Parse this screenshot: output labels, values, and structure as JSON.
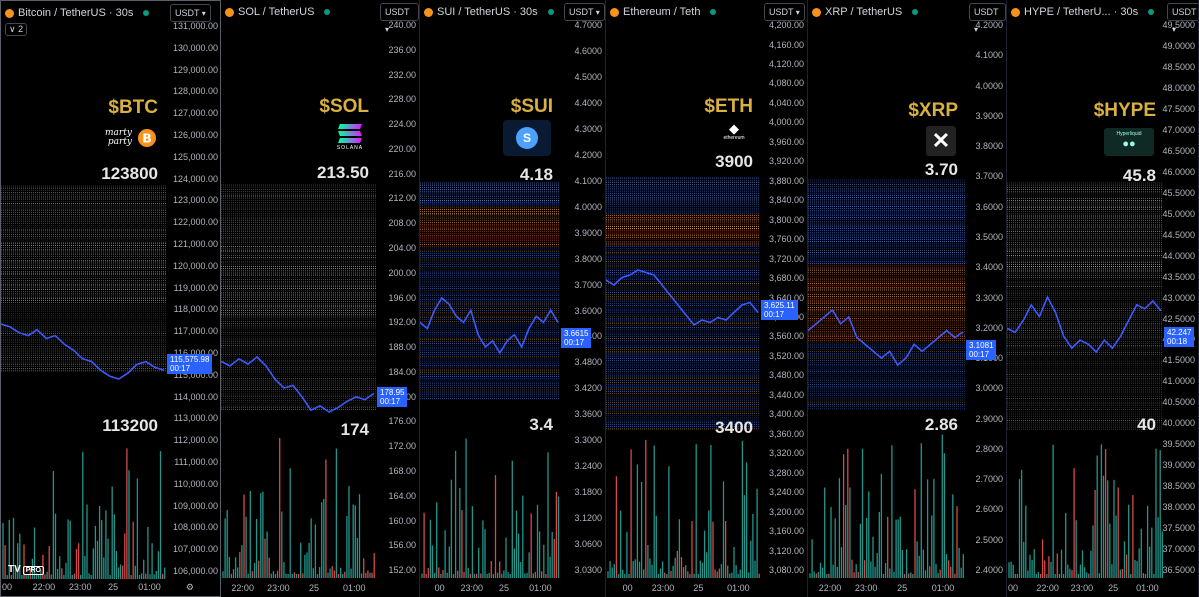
{
  "panels": [
    {
      "id": "btc",
      "title": "Bitcoin / TetherUS · 30s",
      "quote": "USDT",
      "collapse_label": "2",
      "symbol": "$BTC",
      "logo_text": "marty / party",
      "level_high": "123800",
      "level_low": "113200",
      "last_price": "115,575.98",
      "countdown": "00:17",
      "ticks": [
        "131,000.00",
        "130,000.00",
        "129,000.00",
        "128,000.00",
        "127,000.00",
        "126,000.00",
        "125,000.00",
        "124,000.00",
        "123,000.00",
        "122,000.00",
        "121,000.00",
        "120,000.00",
        "119,000.00",
        "118,000.00",
        "117,000.00",
        "116,000.00",
        "115,000.00",
        "114,000.00",
        "113,000.00",
        "112,000.00",
        "111,000.00",
        "110,000.00",
        "109,000.00",
        "108,000.00",
        "107,000.00",
        "106,000.00"
      ],
      "time_labels": [
        "00",
        "22:00",
        "23:00",
        "25",
        "01:00"
      ],
      "price_series": [
        117300,
        117200,
        117000,
        116900,
        117100,
        116800,
        116900,
        116600,
        116400,
        116100,
        116000,
        115700,
        115500,
        115400,
        115600,
        115900,
        116000,
        115800,
        115700
      ]
    },
    {
      "id": "sol",
      "title": "SOL / TetherUS",
      "quote": "USDT",
      "symbol": "$SOL",
      "logo_text": "SOLANA",
      "level_high": "213.50",
      "level_low": "174",
      "last_price": "178.95",
      "countdown": "00:17",
      "ticks": [
        "240.00",
        "236.00",
        "232.00",
        "228.00",
        "224.00",
        "220.00",
        "216.00",
        "212.00",
        "208.00",
        "204.00",
        "200.00",
        "196.00",
        "192.00",
        "188.00",
        "184.00",
        "180.00",
        "176.00",
        "172.00",
        "168.00",
        "164.00",
        "160.00",
        "156.00",
        "152.00"
      ],
      "time_labels": [
        "22:00",
        "23:00",
        "25",
        "01:00"
      ],
      "price_series": [
        182.5,
        182.0,
        182.8,
        182.2,
        183.0,
        182.0,
        180.5,
        179.5,
        179.8,
        178.5,
        177.0,
        177.5,
        176.8,
        177.3,
        178.0,
        178.5,
        178.2,
        178.9
      ]
    },
    {
      "id": "sui",
      "title": "SUI / TetherUS · 30s",
      "quote": "USDT",
      "symbol": "$SUI",
      "logo_text": "S",
      "level_high": "4.18",
      "level_low": "3.4",
      "last_price": "3.6615",
      "countdown": "00:17",
      "ticks": [
        "4.7000",
        "4.6000",
        "4.5000",
        "4.4000",
        "4.3000",
        "4.2000",
        "4.1000",
        "4.0000",
        "3.9000",
        "3.8000",
        "3.7000",
        "3.6000",
        "3.5400",
        "3.4800",
        "3.4200",
        "3.3600",
        "3.3000",
        "3.2400",
        "3.1800",
        "3.1200",
        "3.0600",
        "3.0300"
      ],
      "time_labels": [
        "00",
        "23:00",
        "25",
        "01:00"
      ],
      "price_series": [
        3.66,
        3.65,
        3.68,
        3.7,
        3.69,
        3.67,
        3.66,
        3.68,
        3.64,
        3.62,
        3.63,
        3.61,
        3.63,
        3.64,
        3.62,
        3.65,
        3.67,
        3.66,
        3.68,
        3.66
      ]
    },
    {
      "id": "eth",
      "title": "Ethereum / Teth",
      "quote": "USDT",
      "symbol": "$ETH",
      "logo_text": "ethereum",
      "level_high": "3900",
      "level_low": "3400",
      "last_price": "3,625.11",
      "countdown": "00:17",
      "ticks": [
        "4,200.00",
        "4,160.00",
        "4,120.00",
        "4,080.00",
        "4,040.00",
        "4,000.00",
        "3,960.00",
        "3,920.00",
        "3,880.00",
        "3,840.00",
        "3,800.00",
        "3,760.00",
        "3,720.00",
        "3,680.00",
        "3,640.00",
        "3,600.00",
        "3,560.00",
        "3,520.00",
        "3,480.00",
        "3,440.00",
        "3,400.00",
        "3,360.00",
        "3,320.00",
        "3,280.00",
        "3,240.00",
        "3,200.00",
        "3,160.00",
        "3,120.00",
        "3,080.00"
      ],
      "time_labels": [
        "00",
        "23:00",
        "25",
        "01:00"
      ],
      "price_series": [
        3690,
        3680,
        3695,
        3700,
        3710,
        3705,
        3700,
        3680,
        3660,
        3640,
        3620,
        3600,
        3610,
        3605,
        3615,
        3610,
        3625,
        3640,
        3645,
        3625
      ]
    },
    {
      "id": "xrp",
      "title": "XRP / TetherUS",
      "quote": "USDT",
      "symbol": "$XRP",
      "logo_text": "X",
      "level_high": "3.70",
      "level_low": "2.86",
      "last_price": "3.1081",
      "countdown": "00:17",
      "ticks": [
        "4.2000",
        "4.1000",
        "4.0000",
        "3.9000",
        "3.8000",
        "3.7000",
        "3.6000",
        "3.5000",
        "3.4000",
        "3.3000",
        "3.2000",
        "3.1000",
        "3.0000",
        "2.9000",
        "2.8000",
        "2.7000",
        "2.6000",
        "2.5000",
        "2.4000"
      ],
      "time_labels": [
        "22:00",
        "23:00",
        "25",
        "01:00"
      ],
      "price_series": [
        3.11,
        3.12,
        3.13,
        3.14,
        3.12,
        3.13,
        3.1,
        3.09,
        3.08,
        3.07,
        3.08,
        3.06,
        3.07,
        3.09,
        3.08,
        3.09,
        3.1,
        3.11,
        3.1,
        3.108
      ]
    },
    {
      "id": "hype",
      "title": "HYPE / TetherU... · 30s",
      "quote": "USDT",
      "symbol": "$HYPE",
      "logo_text": "Hyperliquid",
      "level_high": "45.8",
      "level_low": "40",
      "last_price": "42.247",
      "countdown": "00:18",
      "ticks": [
        "49.5000",
        "49.0000",
        "48.5000",
        "48.0000",
        "47.5000",
        "47.0000",
        "46.5000",
        "46.0000",
        "45.5000",
        "45.0000",
        "44.5000",
        "44.0000",
        "43.5000",
        "43.0000",
        "42.5000",
        "42.0000",
        "41.5000",
        "41.0000",
        "40.5000",
        "40.0000",
        "39.5000",
        "39.0000",
        "38.5000",
        "38.0000",
        "37.5000",
        "37.0000",
        "36.5000"
      ],
      "time_labels": [
        "00",
        "22:00",
        "23:00",
        "25",
        "01:00"
      ],
      "price_series": [
        41.8,
        41.7,
        42.0,
        42.4,
        42.1,
        42.6,
        42.2,
        41.6,
        41.3,
        41.5,
        41.4,
        41.2,
        41.5,
        41.3,
        41.6,
        42.0,
        42.4,
        42.3,
        42.5,
        42.25
      ]
    }
  ],
  "colors": {
    "line": "#3d5afe",
    "heat_blue": "#3a6fd8",
    "heat_orange": "#e07b2a",
    "heat_red": "#c0392b",
    "vol_green": "#26a69a",
    "vol_red": "#ef5350",
    "accent": "#2962ff",
    "symbol_gold": "#d9b13f"
  },
  "footer": {
    "tv_logo": "TV",
    "pro_badge": "PRO"
  }
}
